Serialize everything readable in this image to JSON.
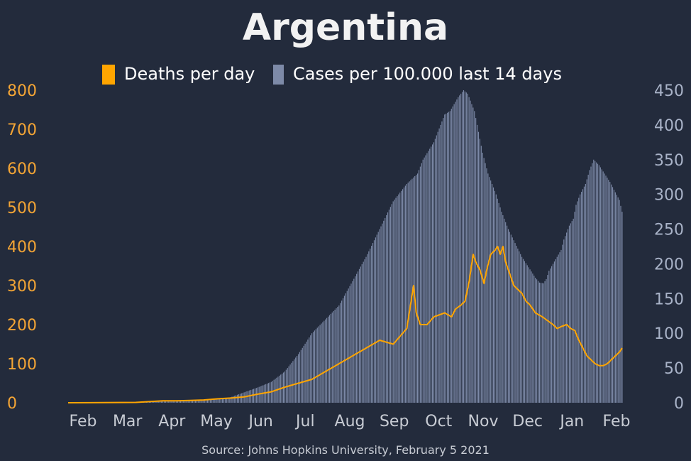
{
  "colors": {
    "background": "#232b3c",
    "deaths": "#ffa500",
    "cases": "#7d8aa8",
    "left_axis_text": "#f4a535",
    "right_axis_text": "#a9b3c8",
    "x_axis_text": "#c8ccd4"
  },
  "chart_data": {
    "type": "bar+line",
    "title": "Argentina",
    "legend": [
      "Deaths per day",
      "Cases per 100.000 last 14 days"
    ],
    "legend_position": "top-center",
    "source": "Source: Johns Hopkins University, February 5 2021",
    "x_ticks": [
      "Feb",
      "Mar",
      "Apr",
      "May",
      "Jun",
      "Jul",
      "Aug",
      "Sep",
      "Oct",
      "Nov",
      "Dec",
      "Jan",
      "Feb"
    ],
    "y_left": {
      "label": "Deaths per day",
      "ticks": [
        0,
        100,
        200,
        300,
        400,
        500,
        600,
        700,
        800
      ],
      "range": [
        0,
        800
      ]
    },
    "y_right": {
      "label": "Cases per 100.000 last 14 days",
      "ticks": [
        0,
        50,
        100,
        150,
        200,
        250,
        300,
        350,
        400,
        450
      ],
      "range": [
        0,
        450
      ]
    },
    "x_range_days": [
      0,
      370
    ],
    "series": [
      {
        "name": "Cases per 100.000 last 14 days",
        "type": "bar",
        "axis": "right",
        "points": [
          [
            0,
            0
          ],
          [
            50,
            0
          ],
          [
            60,
            1
          ],
          [
            70,
            2
          ],
          [
            80,
            3
          ],
          [
            90,
            3
          ],
          [
            100,
            4
          ],
          [
            110,
            5
          ],
          [
            120,
            8
          ],
          [
            130,
            15
          ],
          [
            140,
            22
          ],
          [
            150,
            30
          ],
          [
            160,
            45
          ],
          [
            170,
            70
          ],
          [
            180,
            100
          ],
          [
            190,
            120
          ],
          [
            200,
            140
          ],
          [
            210,
            175
          ],
          [
            220,
            210
          ],
          [
            230,
            250
          ],
          [
            240,
            290
          ],
          [
            250,
            315
          ],
          [
            258,
            330
          ],
          [
            262,
            350
          ],
          [
            270,
            375
          ],
          [
            278,
            415
          ],
          [
            282,
            420
          ],
          [
            288,
            440
          ],
          [
            292,
            450
          ],
          [
            295,
            445
          ],
          [
            300,
            420
          ],
          [
            303,
            390
          ],
          [
            306,
            360
          ],
          [
            310,
            330
          ],
          [
            316,
            300
          ],
          [
            320,
            275
          ],
          [
            325,
            250
          ],
          [
            330,
            230
          ],
          [
            335,
            210
          ],
          [
            340,
            195
          ],
          [
            345,
            180
          ],
          [
            348,
            173
          ],
          [
            351,
            172
          ],
          [
            353,
            178
          ],
          [
            355,
            190
          ],
          [
            358,
            200
          ],
          [
            361,
            210
          ],
          [
            364,
            220
          ],
          [
            366,
            235
          ],
          [
            368,
            245
          ],
          [
            370,
            255
          ],
          [
            373,
            265
          ],
          [
            375,
            285
          ],
          [
            378,
            300
          ],
          [
            382,
            315
          ],
          [
            385,
            335
          ],
          [
            388,
            350
          ],
          [
            392,
            342
          ],
          [
            396,
            330
          ],
          [
            400,
            318
          ],
          [
            404,
            303
          ],
          [
            407,
            292
          ],
          [
            409,
            275
          ]
        ]
      },
      {
        "name": "Deaths per day",
        "type": "line",
        "axis": "left",
        "points": [
          [
            0,
            0
          ],
          [
            50,
            1
          ],
          [
            60,
            3
          ],
          [
            70,
            5
          ],
          [
            80,
            5
          ],
          [
            90,
            6
          ],
          [
            100,
            7
          ],
          [
            110,
            10
          ],
          [
            120,
            12
          ],
          [
            130,
            15
          ],
          [
            140,
            22
          ],
          [
            150,
            28
          ],
          [
            160,
            40
          ],
          [
            170,
            50
          ],
          [
            180,
            60
          ],
          [
            190,
            80
          ],
          [
            200,
            100
          ],
          [
            210,
            120
          ],
          [
            220,
            140
          ],
          [
            230,
            160
          ],
          [
            240,
            150
          ],
          [
            250,
            190
          ],
          [
            255,
            300
          ],
          [
            257,
            230
          ],
          [
            260,
            200
          ],
          [
            265,
            200
          ],
          [
            270,
            220
          ],
          [
            278,
            230
          ],
          [
            283,
            220
          ],
          [
            286,
            240
          ],
          [
            290,
            250
          ],
          [
            293,
            260
          ],
          [
            296,
            310
          ],
          [
            299,
            380
          ],
          [
            301,
            360
          ],
          [
            304,
            340
          ],
          [
            307,
            305
          ],
          [
            309,
            340
          ],
          [
            312,
            380
          ],
          [
            315,
            390
          ],
          [
            317,
            400
          ],
          [
            319,
            380
          ],
          [
            321,
            400
          ],
          [
            323,
            360
          ],
          [
            326,
            330
          ],
          [
            329,
            300
          ],
          [
            332,
            290
          ],
          [
            335,
            280
          ],
          [
            338,
            260
          ],
          [
            341,
            250
          ],
          [
            345,
            230
          ],
          [
            350,
            220
          ],
          [
            354,
            210
          ],
          [
            358,
            200
          ],
          [
            361,
            190
          ],
          [
            364,
            195
          ],
          [
            368,
            200
          ],
          [
            371,
            190
          ],
          [
            374,
            185
          ],
          [
            377,
            160
          ],
          [
            380,
            140
          ],
          [
            383,
            120
          ],
          [
            386,
            110
          ],
          [
            389,
            100
          ],
          [
            392,
            95
          ],
          [
            395,
            95
          ],
          [
            398,
            100
          ],
          [
            401,
            110
          ],
          [
            404,
            120
          ],
          [
            407,
            130
          ],
          [
            409,
            140
          ]
        ]
      }
    ]
  }
}
